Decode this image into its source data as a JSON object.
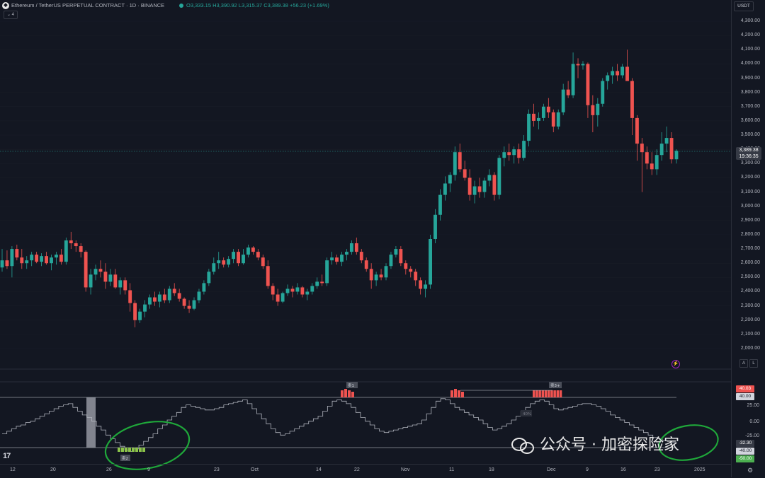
{
  "header": {
    "symbol_title": "Ethereum / TetherUS PERPETUAL CONTRACT · 1D · BINANCE",
    "ohlc": "O3,333.15 H3,390.92 L3,315.37 C3,389.38 +56.23 (+1.69%)",
    "collapse_label": "⌄ 4",
    "logo_glyph": "◆"
  },
  "price_axis": {
    "currency": "USDT",
    "ticks": [
      "4,300.00",
      "4,200.00",
      "4,100.00",
      "4,000.00",
      "3,900.00",
      "3,800.00",
      "3,700.00",
      "3,600.00",
      "3,500.00",
      "3,400.00",
      "3,300.00",
      "3,200.00",
      "3,100.00",
      "3,000.00",
      "2,900.00",
      "2,800.00",
      "2,700.00",
      "2,600.00",
      "2,500.00",
      "2,400.00",
      "2,300.00",
      "2,200.00",
      "2,100.00",
      "2,000.00"
    ],
    "last_price": "3,389.38",
    "countdown": "19:36:35",
    "auto_label": "A",
    "log_label": "L"
  },
  "indicator_axis": {
    "ticks": [
      "25.00",
      "0.00",
      "-25.00"
    ],
    "tag_top": "40.03",
    "tag_top2": "40.00",
    "tag_mid": "-32.30",
    "tag_low": "-40.00",
    "tag_bottom": "-50.00"
  },
  "indicator_labels": {
    "label_a": "卖1",
    "label_b": "卖3+",
    "label_c": "卖2",
    "label_d": "买2",
    "label_mid": "40%"
  },
  "time_axis": {
    "ticks": [
      "12",
      "20",
      "26",
      "9",
      "23",
      "Oct",
      "14",
      "22",
      "Nov",
      "11",
      "18",
      "Dec",
      "9",
      "16",
      "23",
      "2025"
    ]
  },
  "watermark": {
    "text": "公众号 · 加密探险家"
  },
  "colors": {
    "background": "#131722",
    "bull": "#26a69a",
    "bear": "#ef5350",
    "annotation": "#1fa83a",
    "indicator_line": "#b2b5be"
  },
  "icons": {
    "tv_logo": "17",
    "lightning": "⚡",
    "gear": "⚙"
  },
  "chart_data": {
    "type": "candlestick",
    "y_range": [
      1950,
      4350
    ],
    "candles": [
      [
        2570,
        2700,
        2540,
        2620
      ],
      [
        2620,
        2690,
        2560,
        2580
      ],
      [
        2580,
        2720,
        2500,
        2700
      ],
      [
        2700,
        2730,
        2620,
        2640
      ],
      [
        2640,
        2700,
        2560,
        2600
      ],
      [
        2600,
        2650,
        2560,
        2620
      ],
      [
        2620,
        2680,
        2580,
        2660
      ],
      [
        2660,
        2680,
        2600,
        2610
      ],
      [
        2610,
        2670,
        2580,
        2650
      ],
      [
        2650,
        2680,
        2590,
        2600
      ],
      [
        2600,
        2660,
        2550,
        2640
      ],
      [
        2640,
        2680,
        2590,
        2660
      ],
      [
        2660,
        2700,
        2590,
        2610
      ],
      [
        2610,
        2780,
        2590,
        2760
      ],
      [
        2760,
        2820,
        2700,
        2740
      ],
      [
        2740,
        2760,
        2680,
        2720
      ],
      [
        2720,
        2740,
        2640,
        2680
      ],
      [
        2680,
        2690,
        2400,
        2430
      ],
      [
        2430,
        2560,
        2380,
        2520
      ],
      [
        2520,
        2590,
        2480,
        2560
      ],
      [
        2560,
        2620,
        2500,
        2540
      ],
      [
        2540,
        2600,
        2420,
        2470
      ],
      [
        2470,
        2560,
        2440,
        2520
      ],
      [
        2520,
        2560,
        2420,
        2430
      ],
      [
        2430,
        2500,
        2380,
        2480
      ],
      [
        2480,
        2500,
        2380,
        2410
      ],
      [
        2410,
        2460,
        2260,
        2320
      ],
      [
        2320,
        2340,
        2150,
        2200
      ],
      [
        2200,
        2280,
        2180,
        2260
      ],
      [
        2260,
        2340,
        2220,
        2310
      ],
      [
        2310,
        2380,
        2280,
        2360
      ],
      [
        2360,
        2400,
        2300,
        2330
      ],
      [
        2330,
        2400,
        2290,
        2380
      ],
      [
        2380,
        2420,
        2320,
        2340
      ],
      [
        2340,
        2440,
        2320,
        2420
      ],
      [
        2420,
        2460,
        2370,
        2390
      ],
      [
        2390,
        2420,
        2330,
        2350
      ],
      [
        2350,
        2360,
        2280,
        2300
      ],
      [
        2300,
        2340,
        2250,
        2280
      ],
      [
        2280,
        2360,
        2270,
        2340
      ],
      [
        2340,
        2420,
        2320,
        2400
      ],
      [
        2400,
        2480,
        2380,
        2460
      ],
      [
        2460,
        2560,
        2440,
        2540
      ],
      [
        2540,
        2640,
        2520,
        2600
      ],
      [
        2600,
        2680,
        2560,
        2620
      ],
      [
        2620,
        2640,
        2570,
        2590
      ],
      [
        2590,
        2650,
        2570,
        2630
      ],
      [
        2630,
        2700,
        2600,
        2680
      ],
      [
        2680,
        2700,
        2580,
        2600
      ],
      [
        2600,
        2700,
        2590,
        2660
      ],
      [
        2660,
        2730,
        2640,
        2710
      ],
      [
        2710,
        2720,
        2660,
        2680
      ],
      [
        2680,
        2700,
        2620,
        2640
      ],
      [
        2640,
        2660,
        2560,
        2580
      ],
      [
        2580,
        2620,
        2420,
        2440
      ],
      [
        2440,
        2460,
        2340,
        2380
      ],
      [
        2380,
        2420,
        2300,
        2330
      ],
      [
        2330,
        2400,
        2320,
        2390
      ],
      [
        2390,
        2450,
        2370,
        2420
      ],
      [
        2420,
        2440,
        2360,
        2400
      ],
      [
        2400,
        2460,
        2380,
        2430
      ],
      [
        2430,
        2440,
        2360,
        2380
      ],
      [
        2380,
        2420,
        2340,
        2400
      ],
      [
        2400,
        2460,
        2380,
        2440
      ],
      [
        2440,
        2500,
        2420,
        2470
      ],
      [
        2470,
        2520,
        2440,
        2460
      ],
      [
        2460,
        2640,
        2440,
        2620
      ],
      [
        2620,
        2680,
        2590,
        2640
      ],
      [
        2640,
        2660,
        2590,
        2610
      ],
      [
        2610,
        2680,
        2580,
        2660
      ],
      [
        2660,
        2700,
        2620,
        2680
      ],
      [
        2680,
        2760,
        2660,
        2740
      ],
      [
        2740,
        2780,
        2660,
        2680
      ],
      [
        2680,
        2700,
        2600,
        2620
      ],
      [
        2620,
        2640,
        2540,
        2560
      ],
      [
        2560,
        2600,
        2420,
        2480
      ],
      [
        2480,
        2540,
        2440,
        2520
      ],
      [
        2520,
        2560,
        2480,
        2500
      ],
      [
        2500,
        2600,
        2480,
        2580
      ],
      [
        2580,
        2680,
        2560,
        2660
      ],
      [
        2660,
        2720,
        2640,
        2700
      ],
      [
        2700,
        2720,
        2580,
        2600
      ],
      [
        2600,
        2620,
        2520,
        2560
      ],
      [
        2560,
        2580,
        2500,
        2540
      ],
      [
        2540,
        2560,
        2440,
        2480
      ],
      [
        2480,
        2500,
        2380,
        2420
      ],
      [
        2420,
        2480,
        2360,
        2450
      ],
      [
        2450,
        2800,
        2420,
        2770
      ],
      [
        2770,
        2980,
        2740,
        2940
      ],
      [
        2940,
        3120,
        2900,
        3080
      ],
      [
        3080,
        3210,
        3040,
        3160
      ],
      [
        3160,
        3240,
        3100,
        3220
      ],
      [
        3220,
        3420,
        3180,
        3380
      ],
      [
        3380,
        3440,
        3240,
        3260
      ],
      [
        3260,
        3320,
        3180,
        3200
      ],
      [
        3200,
        3260,
        3040,
        3080
      ],
      [
        3080,
        3180,
        3020,
        3140
      ],
      [
        3140,
        3200,
        3060,
        3100
      ],
      [
        3100,
        3200,
        3060,
        3180
      ],
      [
        3180,
        3260,
        3140,
        3220
      ],
      [
        3220,
        3240,
        3040,
        3080
      ],
      [
        3080,
        3360,
        3050,
        3340
      ],
      [
        3340,
        3420,
        3280,
        3380
      ],
      [
        3380,
        3440,
        3320,
        3360
      ],
      [
        3360,
        3420,
        3300,
        3400
      ],
      [
        3400,
        3440,
        3300,
        3340
      ],
      [
        3340,
        3500,
        3320,
        3460
      ],
      [
        3460,
        3680,
        3420,
        3650
      ],
      [
        3650,
        3720,
        3560,
        3600
      ],
      [
        3600,
        3660,
        3540,
        3620
      ],
      [
        3620,
        3720,
        3600,
        3700
      ],
      [
        3700,
        3760,
        3620,
        3660
      ],
      [
        3660,
        3680,
        3520,
        3560
      ],
      [
        3560,
        3680,
        3540,
        3660
      ],
      [
        3660,
        3860,
        3640,
        3820
      ],
      [
        3820,
        3880,
        3760,
        3780
      ],
      [
        3780,
        4080,
        3760,
        4000
      ],
      [
        4000,
        4040,
        3900,
        3990
      ],
      [
        3990,
        4020,
        3960,
        4000
      ],
      [
        4000,
        4010,
        3620,
        3710
      ],
      [
        3710,
        3780,
        3520,
        3640
      ],
      [
        3640,
        3760,
        3560,
        3720
      ],
      [
        3720,
        3900,
        3700,
        3880
      ],
      [
        3880,
        3940,
        3820,
        3920
      ],
      [
        3920,
        3980,
        3860,
        3950
      ],
      [
        3950,
        4000,
        3880,
        3920
      ],
      [
        3920,
        4000,
        3900,
        3980
      ],
      [
        3980,
        4100,
        3900,
        3880
      ],
      [
        3880,
        3900,
        3500,
        3620
      ],
      [
        3620,
        3640,
        3320,
        3440
      ],
      [
        3440,
        3480,
        3100,
        3380
      ],
      [
        3380,
        3420,
        3260,
        3300
      ],
      [
        3300,
        3380,
        3220,
        3260
      ],
      [
        3260,
        3400,
        3220,
        3360
      ],
      [
        3360,
        3520,
        3320,
        3440
      ],
      [
        3440,
        3560,
        3380,
        3480
      ],
      [
        3480,
        3520,
        3300,
        3330
      ],
      [
        3330,
        3400,
        3300,
        3390
      ]
    ],
    "indicator_series": [
      -18,
      -14,
      -10,
      -6,
      -4,
      0,
      2,
      6,
      10,
      14,
      18,
      22,
      26,
      28,
      30,
      24,
      18,
      12,
      8,
      2,
      -6,
      -12,
      -20,
      -26,
      -32,
      -38,
      -44,
      -46,
      -42,
      -36,
      -30,
      -24,
      -18,
      -10,
      -4,
      4,
      10,
      16,
      24,
      28,
      26,
      24,
      22,
      20,
      20,
      22,
      24,
      28,
      30,
      32,
      34,
      36,
      30,
      22,
      14,
      6,
      -2,
      -10,
      -16,
      -20,
      -18,
      -14,
      -10,
      -6,
      -2,
      2,
      6,
      10,
      18,
      26,
      34,
      36,
      34,
      30,
      24,
      16,
      8,
      2,
      -4,
      -10,
      -14,
      -16,
      -14,
      -12,
      -10,
      -8,
      -6,
      -4,
      -2,
      4,
      14,
      24,
      34,
      38,
      36,
      30,
      24,
      20,
      16,
      12,
      8,
      4,
      -2,
      -8,
      -12,
      -10,
      -6,
      -2,
      4,
      10,
      18,
      24,
      30,
      34,
      36,
      34,
      28,
      22,
      20,
      22,
      24,
      26,
      28,
      30,
      30,
      28,
      26,
      22,
      18,
      12,
      8,
      4,
      0,
      -4,
      -8,
      -12,
      -16,
      -20,
      -24,
      -26,
      -28,
      -30,
      -32,
      -32
    ]
  }
}
